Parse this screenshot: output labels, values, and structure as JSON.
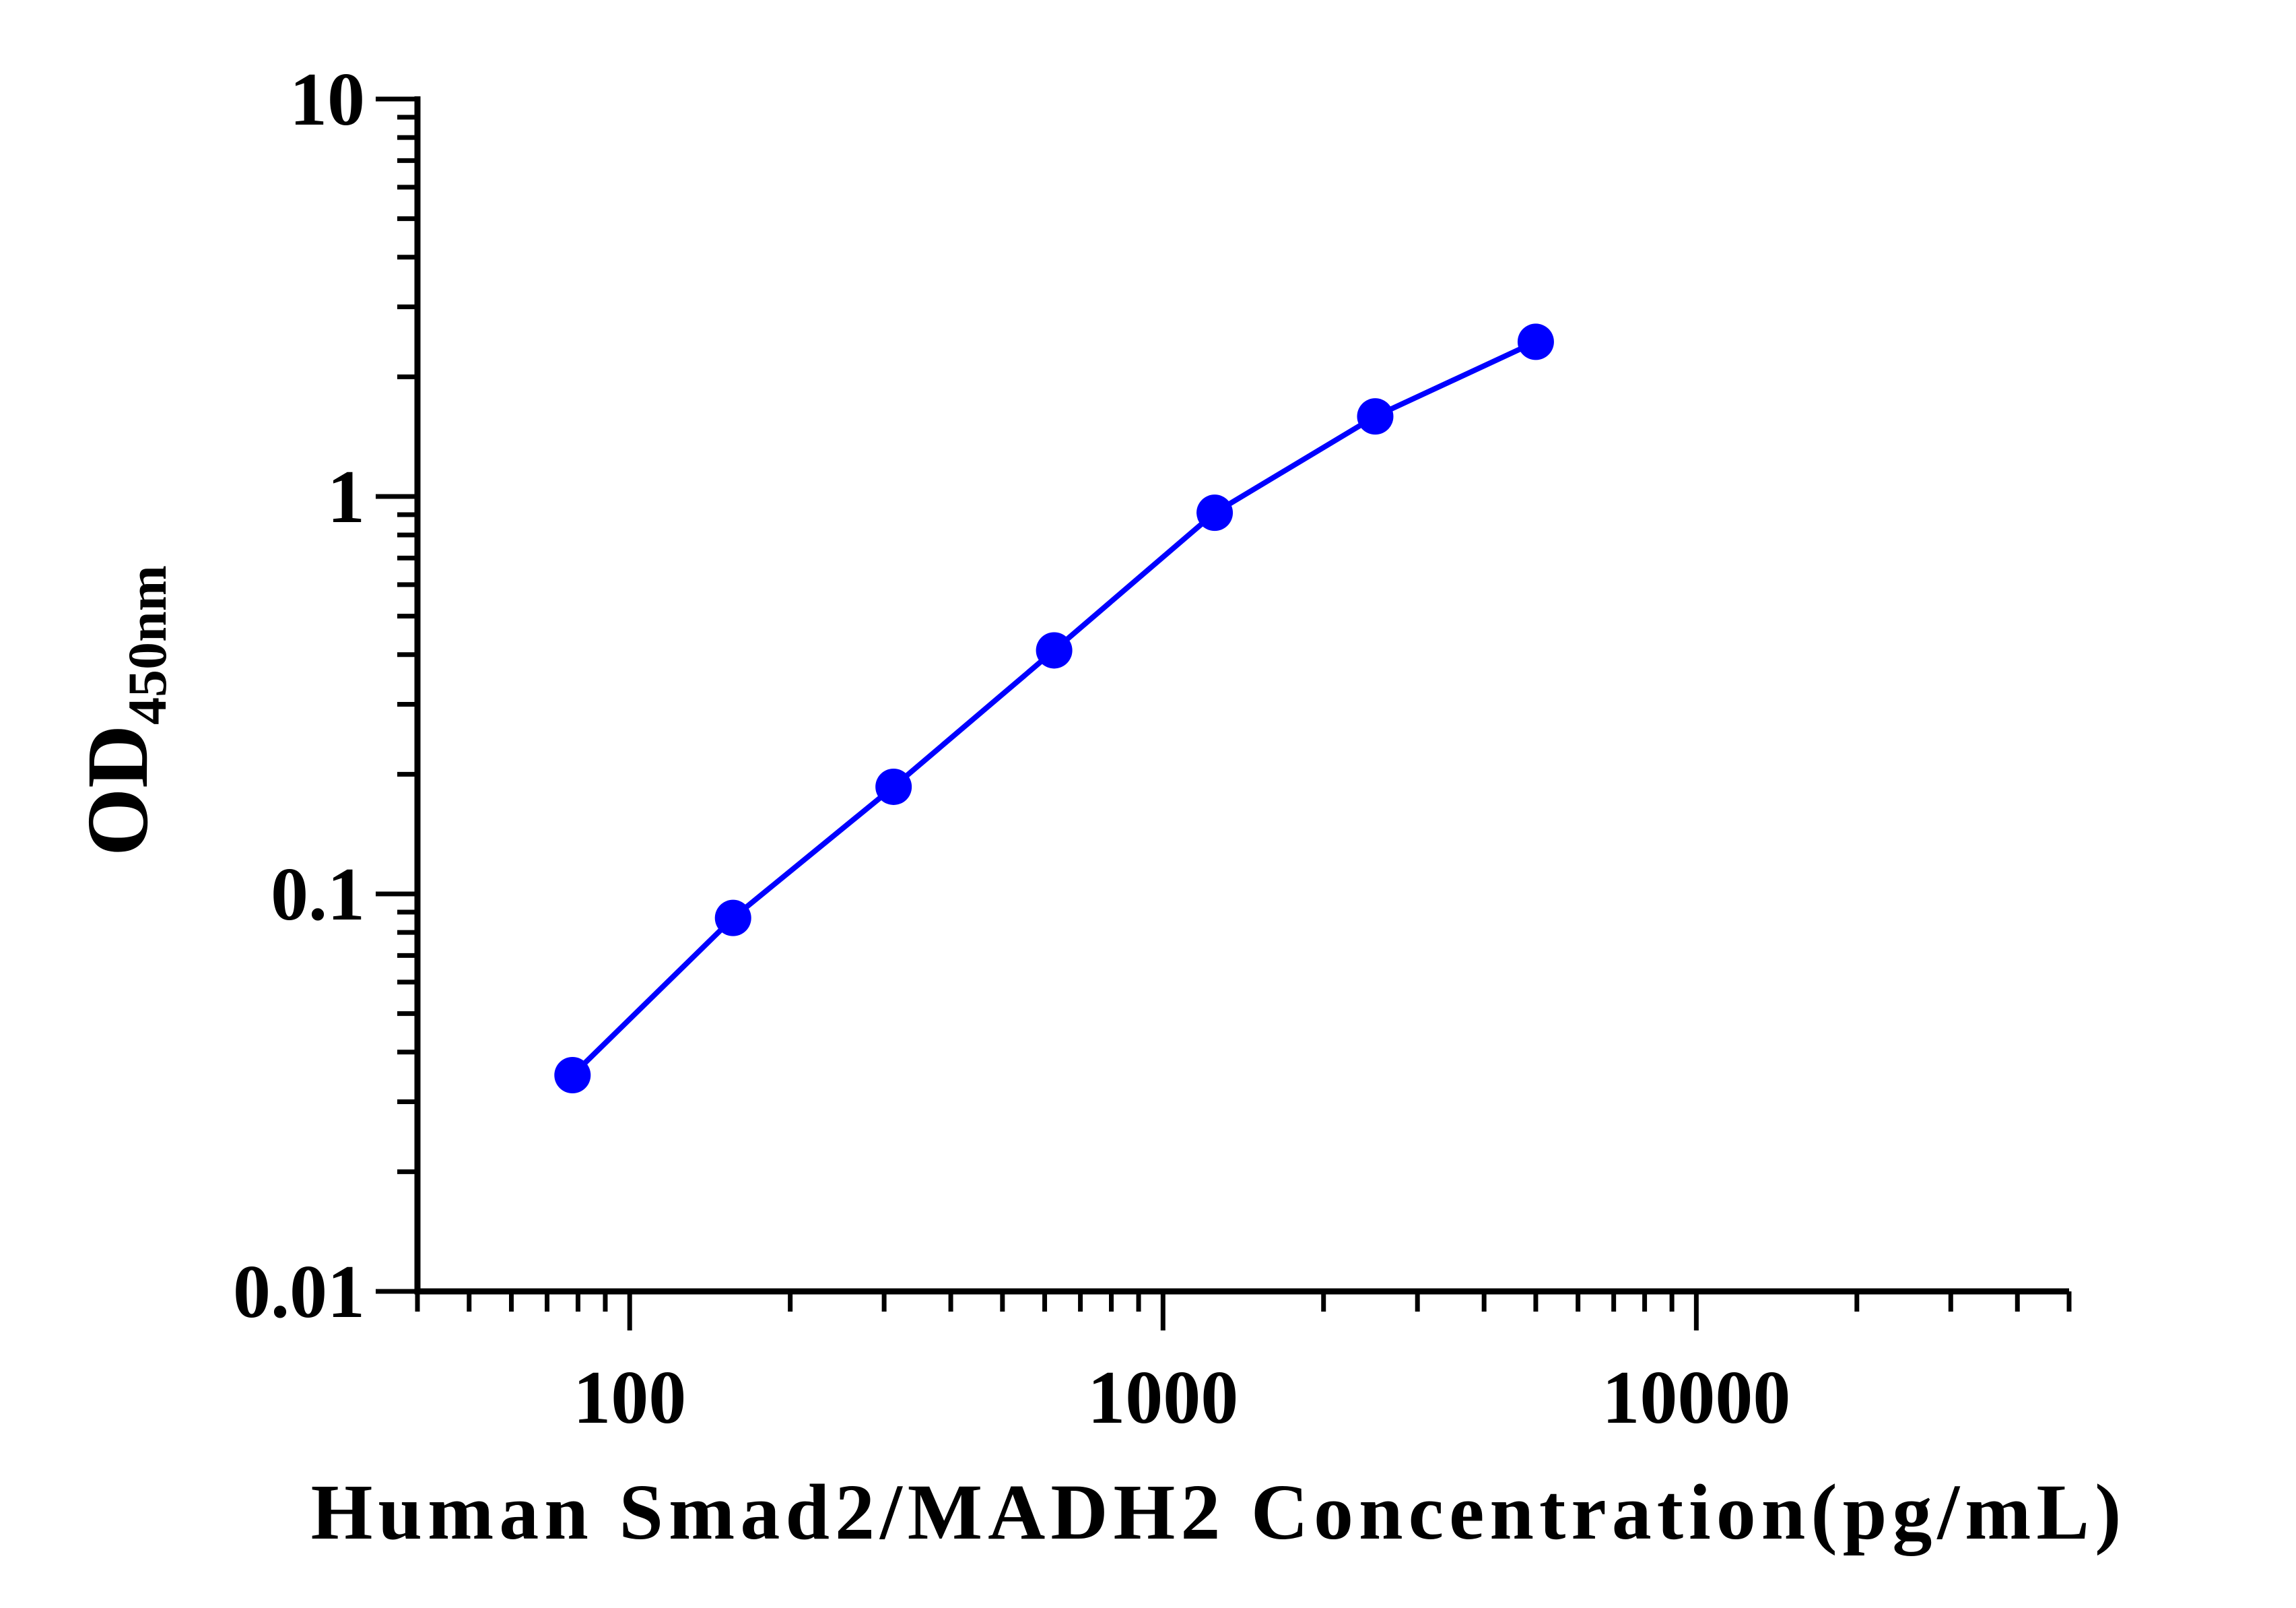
{
  "chart_data": {
    "type": "line",
    "title": "",
    "xlabel": "Human Smad2/MADH2 Concentration(pg/mL)",
    "ylabel": "OD",
    "ylabel_subscript": "450nm",
    "xscale": "log",
    "yscale": "log",
    "xlim": [
      40,
      50000
    ],
    "ylim": [
      0.01,
      10
    ],
    "x_ticks": [
      {
        "value": 100,
        "label": "100"
      },
      {
        "value": 1000,
        "label": "1000"
      },
      {
        "value": 10000,
        "label": "10000"
      }
    ],
    "y_ticks": [
      {
        "value": 0.01,
        "label": "0.01"
      },
      {
        "value": 0.1,
        "label": "0.1"
      },
      {
        "value": 1,
        "label": "1"
      },
      {
        "value": 10,
        "label": "10"
      }
    ],
    "grid": false,
    "legend": "none",
    "series": [
      {
        "color": "#0000ff",
        "marker": "circle",
        "x": [
          78.125,
          156.25,
          312.5,
          625,
          1250,
          2500,
          5000
        ],
        "y": [
          0.035,
          0.087,
          0.186,
          0.41,
          0.91,
          1.59,
          2.45
        ]
      }
    ]
  }
}
